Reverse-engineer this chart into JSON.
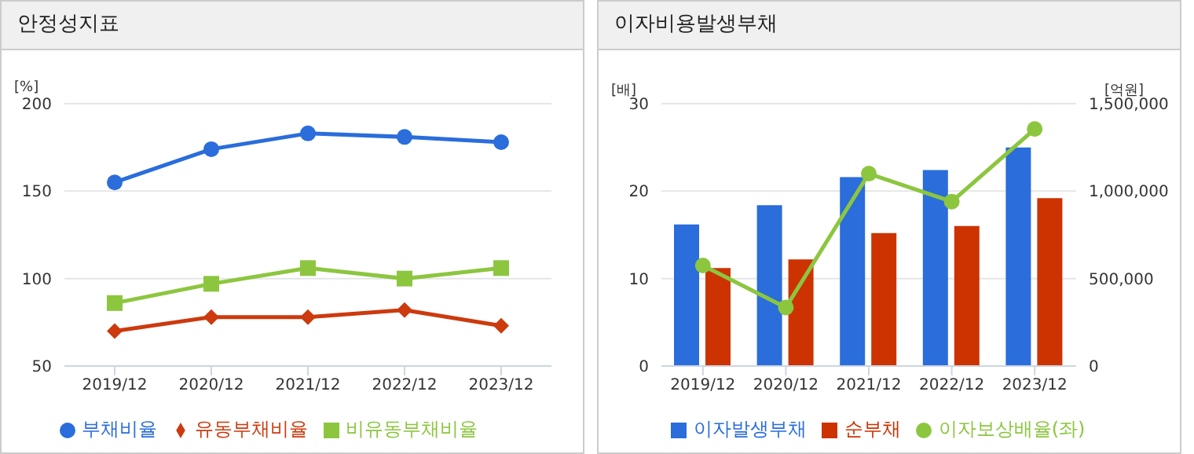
{
  "chart_data": [
    {
      "type": "line",
      "title": "안정성지표",
      "ylabel": "[%]",
      "categories": [
        "2019/12",
        "2020/12",
        "2021/12",
        "2022/12",
        "2023/12"
      ],
      "ylim": [
        50,
        200
      ],
      "yticks": [
        50,
        100,
        150,
        200
      ],
      "grid": "y",
      "legend": "bottom",
      "series": [
        {
          "name": "부채비율",
          "color": "#2a6ddb",
          "marker": "circle",
          "values": [
            155,
            174,
            183,
            181,
            178
          ]
        },
        {
          "name": "유동부채비율",
          "color": "#cc3a0e",
          "marker": "diamond",
          "values": [
            70,
            78,
            78,
            82,
            73
          ]
        },
        {
          "name": "비유동부채비율",
          "color": "#8cc63f",
          "marker": "square",
          "values": [
            86,
            97,
            106,
            100,
            106
          ]
        }
      ]
    },
    {
      "type": "bar",
      "title": "이자비용발생부채",
      "ylabel": "[배]",
      "y2label": "[억원]",
      "categories": [
        "2019/12",
        "2020/12",
        "2021/12",
        "2022/12",
        "2023/12"
      ],
      "ylim": [
        0,
        30
      ],
      "yticks": [
        0,
        10,
        20,
        30
      ],
      "y2lim": [
        0,
        1500000
      ],
      "y2ticks": [
        {
          "value": 0,
          "label": "0"
        },
        {
          "value": 500000,
          "label": "500,000"
        },
        {
          "value": 1000000,
          "label": "1,000,000"
        },
        {
          "value": 1500000,
          "label": "1,500,000"
        }
      ],
      "grid": "y",
      "legend": "bottom",
      "series": [
        {
          "name": "이자발생부채",
          "color": "#2a6ddb",
          "axis": "y2",
          "values": [
            810000,
            920000,
            1080000,
            1120000,
            1250000
          ]
        },
        {
          "name": "순부채",
          "color": "#cc3300",
          "axis": "y2",
          "values": [
            560000,
            610000,
            760000,
            800000,
            960000
          ]
        },
        {
          "name": "이자보상배율(좌)",
          "type": "line",
          "color": "#8cc63f",
          "marker": "circle",
          "values": [
            11.5,
            6.7,
            22.0,
            18.8,
            27.1
          ]
        }
      ]
    }
  ]
}
